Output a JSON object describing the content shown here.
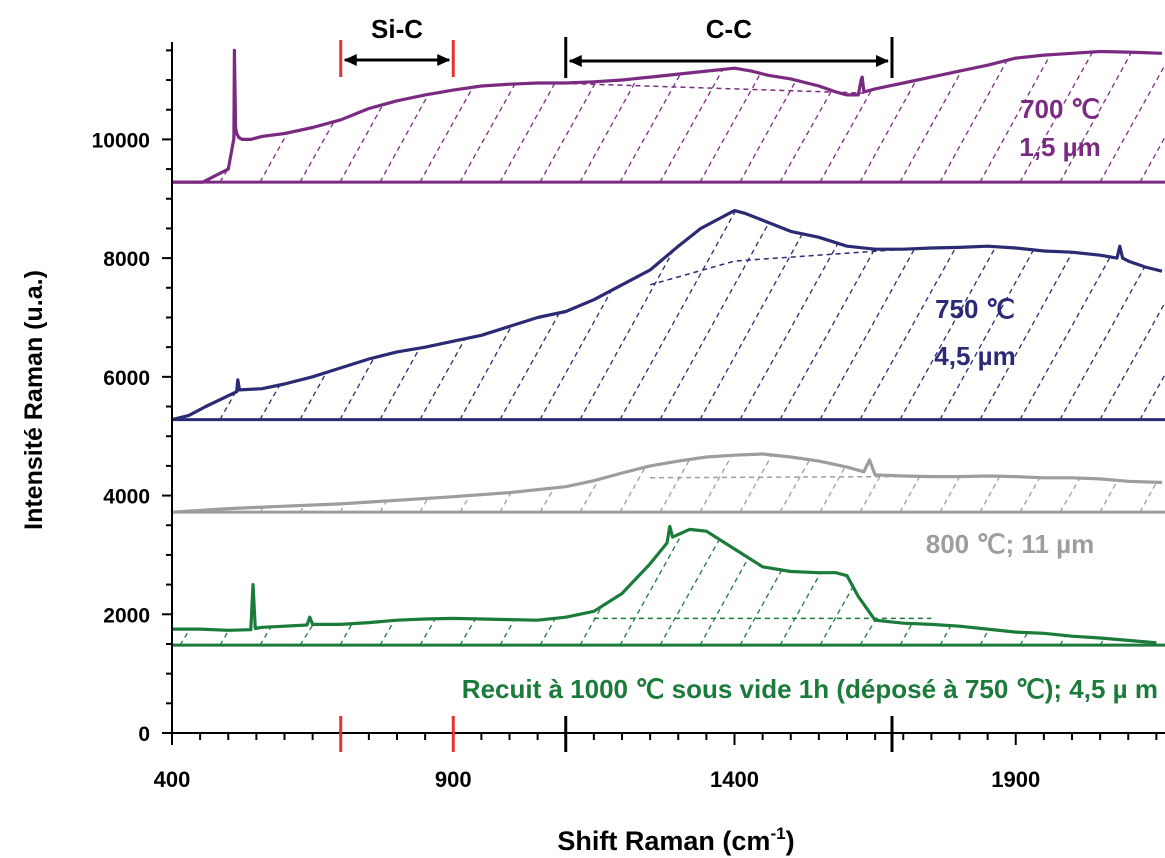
{
  "chart_data": {
    "type": "line",
    "xlabel": "Shift Raman (cm",
    "xlabel_sup": "-1",
    "xlabel_end": ")",
    "ylabel": "Intensité Raman (u.a.)",
    "xlim": [
      400,
      2160
    ],
    "ylim": [
      0,
      11500
    ],
    "xticks": [
      400,
      900,
      1400,
      1900
    ],
    "yticks": [
      0,
      2000,
      4000,
      6000,
      8000,
      10000
    ],
    "grid": false,
    "legend": "none",
    "regions": [
      {
        "label": "Si-C",
        "x_start": 700,
        "x_end": 900,
        "color": "#e8302e"
      },
      {
        "label": "C-C",
        "x_start": 1100,
        "x_end": 1680,
        "color": "#000000"
      }
    ],
    "series": [
      {
        "id": "s700",
        "color": "#7b2a82",
        "label_lines": [
          "700 ℃",
          "1,5 µm"
        ],
        "baseline": 9280,
        "x": [
          400,
          455,
          500,
          510,
          511,
          513,
          515,
          519,
          525,
          540,
          560,
          600,
          650,
          700,
          750,
          800,
          850,
          900,
          950,
          1000,
          1050,
          1100,
          1150,
          1200,
          1250,
          1300,
          1350,
          1400,
          1430,
          1460,
          1500,
          1550,
          1580,
          1600,
          1620,
          1625,
          1627,
          1630,
          1650,
          1700,
          1750,
          1800,
          1850,
          1900,
          1950,
          2000,
          2050,
          2100,
          2160
        ],
        "y": [
          9280,
          9280,
          9500,
          10020,
          11500,
          10200,
          10100,
          10030,
          10000,
          10000,
          10050,
          10100,
          10200,
          10330,
          10520,
          10650,
          10750,
          10830,
          10900,
          10930,
          10950,
          10950,
          10970,
          11000,
          11050,
          11100,
          11150,
          11200,
          11150,
          11080,
          11020,
          10900,
          10800,
          10750,
          10750,
          11000,
          11050,
          10800,
          10850,
          10950,
          11050,
          11150,
          11250,
          11370,
          11420,
          11450,
          11480,
          11470,
          11450
        ]
      },
      {
        "id": "s750",
        "color": "#2b2a74",
        "label_lines": [
          "750 ℃",
          "4,5 µm"
        ],
        "baseline": 5280,
        "x": [
          400,
          430,
          460,
          515,
          517,
          520,
          560,
          600,
          650,
          700,
          750,
          800,
          850,
          900,
          950,
          1000,
          1050,
          1100,
          1150,
          1200,
          1250,
          1300,
          1340,
          1370,
          1400,
          1420,
          1460,
          1500,
          1550,
          1600,
          1650,
          1700,
          1750,
          1800,
          1850,
          1900,
          1950,
          2000,
          2050,
          2080,
          2085,
          2090,
          2100,
          2130,
          2160
        ],
        "y": [
          5280,
          5350,
          5500,
          5750,
          5950,
          5780,
          5800,
          5880,
          6000,
          6150,
          6300,
          6420,
          6500,
          6600,
          6700,
          6850,
          7000,
          7100,
          7300,
          7550,
          7800,
          8200,
          8500,
          8650,
          8800,
          8750,
          8600,
          8450,
          8350,
          8200,
          8150,
          8150,
          8170,
          8180,
          8200,
          8170,
          8120,
          8100,
          8050,
          8000,
          8200,
          8000,
          7950,
          7850,
          7780
        ]
      },
      {
        "id": "s800",
        "color": "#9d9d9d",
        "label_lines": [
          "800 ℃; 11 µm"
        ],
        "baseline": 3720,
        "x": [
          400,
          500,
          600,
          700,
          800,
          900,
          1000,
          1100,
          1150,
          1200,
          1250,
          1300,
          1350,
          1400,
          1450,
          1500,
          1550,
          1600,
          1630,
          1640,
          1650,
          1700,
          1750,
          1800,
          1850,
          1900,
          1950,
          2000,
          2050,
          2100,
          2160
        ],
        "y": [
          3720,
          3780,
          3820,
          3860,
          3920,
          3980,
          4050,
          4150,
          4250,
          4380,
          4500,
          4580,
          4650,
          4680,
          4700,
          4650,
          4580,
          4480,
          4400,
          4600,
          4350,
          4330,
          4320,
          4320,
          4330,
          4320,
          4300,
          4300,
          4280,
          4240,
          4220
        ]
      },
      {
        "id": "s1000",
        "color": "#1b7b3a",
        "label_lines": [
          "Recuit à 1000 ℃ sous vide 1h (déposé à 750 ℃); 4,5 µ m"
        ],
        "baseline": 1480,
        "x": [
          400,
          450,
          500,
          540,
          544,
          548,
          560,
          600,
          640,
          645,
          650,
          700,
          750,
          800,
          850,
          900,
          950,
          1000,
          1050,
          1100,
          1150,
          1200,
          1250,
          1280,
          1285,
          1290,
          1320,
          1350,
          1400,
          1450,
          1500,
          1550,
          1580,
          1600,
          1620,
          1650,
          1700,
          1750,
          1800,
          1850,
          1900,
          1950,
          2000,
          2050,
          2100,
          2150
        ],
        "y": [
          1750,
          1750,
          1730,
          1740,
          2500,
          1760,
          1780,
          1800,
          1820,
          1950,
          1830,
          1830,
          1860,
          1900,
          1920,
          1930,
          1920,
          1910,
          1900,
          1950,
          2050,
          2350,
          2850,
          3200,
          3480,
          3300,
          3430,
          3400,
          3100,
          2800,
          2720,
          2700,
          2700,
          2650,
          2300,
          1900,
          1850,
          1830,
          1800,
          1750,
          1700,
          1680,
          1630,
          1600,
          1560,
          1520
        ]
      }
    ]
  }
}
